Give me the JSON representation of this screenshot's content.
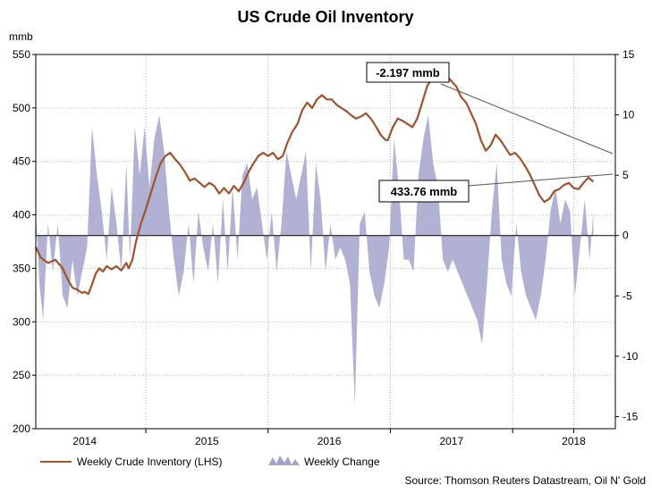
{
  "chart_data": {
    "type": "line",
    "title": "US Crude Oil Inventory",
    "left_axis": {
      "unit": "mmb",
      "ylim": [
        200,
        550
      ],
      "ticks": [
        "200",
        "250",
        "300",
        "350",
        "400",
        "450",
        "500",
        "550"
      ]
    },
    "right_axis": {
      "ylim": [
        -16,
        15
      ],
      "ticks": [
        "-15",
        "-10",
        "-5",
        "0",
        "5",
        "10",
        "15"
      ]
    },
    "x_axis": {
      "range": [
        2013.6,
        2018.34
      ],
      "tick_labels": [
        "2014",
        "2015",
        "2016",
        "2017",
        "2018"
      ],
      "tick_positions": [
        2014.0,
        2015.0,
        2016.0,
        2017.0,
        2018.0
      ],
      "year_boundaries": [
        2014.5,
        2015.5,
        2016.5,
        2017.5,
        2018.0
      ]
    },
    "grid": true,
    "legend_position": "bottom-left",
    "series": [
      {
        "name": "Weekly Crude Inventory (LHS)",
        "axis": "left",
        "color": "#a0522d",
        "points": [
          [
            2013.6,
            370
          ],
          [
            2013.64,
            360
          ],
          [
            2013.7,
            355
          ],
          [
            2013.76,
            358
          ],
          [
            2013.82,
            350
          ],
          [
            2013.86,
            340
          ],
          [
            2013.9,
            332
          ],
          [
            2013.94,
            330
          ],
          [
            2013.98,
            327
          ],
          [
            2014.0,
            328
          ],
          [
            2014.03,
            326
          ],
          [
            2014.06,
            335
          ],
          [
            2014.09,
            345
          ],
          [
            2014.12,
            350
          ],
          [
            2014.15,
            347
          ],
          [
            2014.18,
            352
          ],
          [
            2014.22,
            349
          ],
          [
            2014.26,
            352
          ],
          [
            2014.3,
            348
          ],
          [
            2014.34,
            355
          ],
          [
            2014.36,
            350
          ],
          [
            2014.39,
            358
          ],
          [
            2014.42,
            375
          ],
          [
            2014.46,
            392
          ],
          [
            2014.5,
            405
          ],
          [
            2014.54,
            420
          ],
          [
            2014.58,
            435
          ],
          [
            2014.62,
            448
          ],
          [
            2014.66,
            455
          ],
          [
            2014.7,
            458
          ],
          [
            2014.74,
            452
          ],
          [
            2014.78,
            447
          ],
          [
            2014.82,
            440
          ],
          [
            2014.86,
            432
          ],
          [
            2014.9,
            434
          ],
          [
            2014.94,
            430
          ],
          [
            2014.98,
            426
          ],
          [
            2015.02,
            430
          ],
          [
            2015.06,
            427
          ],
          [
            2015.1,
            420
          ],
          [
            2015.14,
            425
          ],
          [
            2015.18,
            420
          ],
          [
            2015.22,
            427
          ],
          [
            2015.26,
            422
          ],
          [
            2015.3,
            430
          ],
          [
            2015.34,
            440
          ],
          [
            2015.38,
            448
          ],
          [
            2015.42,
            455
          ],
          [
            2015.46,
            458
          ],
          [
            2015.5,
            455
          ],
          [
            2015.54,
            458
          ],
          [
            2015.58,
            452
          ],
          [
            2015.62,
            455
          ],
          [
            2015.66,
            468
          ],
          [
            2015.7,
            478
          ],
          [
            2015.74,
            485
          ],
          [
            2015.78,
            498
          ],
          [
            2015.82,
            505
          ],
          [
            2015.86,
            500
          ],
          [
            2015.9,
            508
          ],
          [
            2015.94,
            512
          ],
          [
            2015.98,
            508
          ],
          [
            2016.02,
            508
          ],
          [
            2016.06,
            503
          ],
          [
            2016.1,
            500
          ],
          [
            2016.14,
            497
          ],
          [
            2016.18,
            493
          ],
          [
            2016.22,
            490
          ],
          [
            2016.26,
            492
          ],
          [
            2016.3,
            495
          ],
          [
            2016.34,
            490
          ],
          [
            2016.38,
            483
          ],
          [
            2016.42,
            475
          ],
          [
            2016.46,
            470
          ],
          [
            2016.48,
            470
          ],
          [
            2016.52,
            482
          ],
          [
            2016.56,
            490
          ],
          [
            2016.6,
            488
          ],
          [
            2016.64,
            485
          ],
          [
            2016.68,
            482
          ],
          [
            2016.72,
            490
          ],
          [
            2016.76,
            505
          ],
          [
            2016.8,
            520
          ],
          [
            2016.84,
            528
          ],
          [
            2016.88,
            533
          ],
          [
            2016.92,
            535
          ],
          [
            2016.96,
            530
          ],
          [
            2017.0,
            525
          ],
          [
            2017.04,
            520
          ],
          [
            2017.08,
            510
          ],
          [
            2017.12,
            505
          ],
          [
            2017.16,
            495
          ],
          [
            2017.2,
            485
          ],
          [
            2017.24,
            470
          ],
          [
            2017.28,
            460
          ],
          [
            2017.32,
            465
          ],
          [
            2017.36,
            475
          ],
          [
            2017.4,
            470
          ],
          [
            2017.44,
            463
          ],
          [
            2017.48,
            456
          ],
          [
            2017.52,
            458
          ],
          [
            2017.56,
            453
          ],
          [
            2017.6,
            446
          ],
          [
            2017.64,
            438
          ],
          [
            2017.68,
            428
          ],
          [
            2017.72,
            418
          ],
          [
            2017.76,
            412
          ],
          [
            2017.8,
            415
          ],
          [
            2017.84,
            422
          ],
          [
            2017.88,
            424
          ],
          [
            2017.92,
            428
          ],
          [
            2017.96,
            430
          ],
          [
            2018.0,
            425
          ],
          [
            2018.04,
            424
          ],
          [
            2018.08,
            430
          ],
          [
            2018.12,
            435
          ],
          [
            2018.16,
            431
          ]
        ]
      },
      {
        "name": "Weekly Change",
        "axis": "right",
        "color": "#a3a3cc",
        "points": [
          [
            2013.6,
            2
          ],
          [
            2013.63,
            -4
          ],
          [
            2013.66,
            -7
          ],
          [
            2013.7,
            1
          ],
          [
            2013.74,
            -3
          ],
          [
            2013.78,
            1
          ],
          [
            2013.82,
            -5
          ],
          [
            2013.86,
            -6
          ],
          [
            2013.9,
            -2
          ],
          [
            2013.94,
            -5
          ],
          [
            2013.98,
            -3
          ],
          [
            2014.02,
            -1
          ],
          [
            2014.06,
            9
          ],
          [
            2014.1,
            5
          ],
          [
            2014.14,
            2
          ],
          [
            2014.18,
            -2
          ],
          [
            2014.22,
            4
          ],
          [
            2014.26,
            1
          ],
          [
            2014.3,
            -3
          ],
          [
            2014.34,
            6
          ],
          [
            2014.37,
            -2
          ],
          [
            2014.41,
            9
          ],
          [
            2014.45,
            5
          ],
          [
            2014.49,
            9
          ],
          [
            2014.53,
            4
          ],
          [
            2014.57,
            8
          ],
          [
            2014.61,
            10
          ],
          [
            2014.65,
            7
          ],
          [
            2014.69,
            2
          ],
          [
            2014.73,
            -2
          ],
          [
            2014.77,
            -5
          ],
          [
            2014.81,
            -3
          ],
          [
            2014.85,
            1
          ],
          [
            2014.89,
            -4
          ],
          [
            2014.93,
            2
          ],
          [
            2014.97,
            -1
          ],
          [
            2015.01,
            -3
          ],
          [
            2015.05,
            1
          ],
          [
            2015.09,
            -4
          ],
          [
            2015.13,
            3
          ],
          [
            2015.17,
            -3
          ],
          [
            2015.21,
            4
          ],
          [
            2015.25,
            -2
          ],
          [
            2015.29,
            5
          ],
          [
            2015.33,
            6
          ],
          [
            2015.37,
            3
          ],
          [
            2015.41,
            4
          ],
          [
            2015.45,
            1
          ],
          [
            2015.49,
            -2
          ],
          [
            2015.53,
            2
          ],
          [
            2015.57,
            -3
          ],
          [
            2015.61,
            1
          ],
          [
            2015.65,
            7
          ],
          [
            2015.69,
            5
          ],
          [
            2015.73,
            3
          ],
          [
            2015.77,
            5
          ],
          [
            2015.81,
            7
          ],
          [
            2015.85,
            -3
          ],
          [
            2015.89,
            6
          ],
          [
            2015.93,
            3
          ],
          [
            2015.97,
            -3
          ],
          [
            2016.01,
            1
          ],
          [
            2016.05,
            -2
          ],
          [
            2016.09,
            -1
          ],
          [
            2016.13,
            -2
          ],
          [
            2016.17,
            -4
          ],
          [
            2016.21,
            -14
          ],
          [
            2016.25,
            1
          ],
          [
            2016.29,
            2
          ],
          [
            2016.33,
            -3
          ],
          [
            2016.37,
            -5
          ],
          [
            2016.41,
            -6
          ],
          [
            2016.45,
            -4
          ],
          [
            2016.49,
            -1
          ],
          [
            2016.53,
            8
          ],
          [
            2016.57,
            4
          ],
          [
            2016.61,
            -2
          ],
          [
            2016.65,
            -2
          ],
          [
            2016.69,
            -3
          ],
          [
            2016.73,
            5
          ],
          [
            2016.77,
            8
          ],
          [
            2016.81,
            10
          ],
          [
            2016.85,
            6
          ],
          [
            2016.89,
            4
          ],
          [
            2016.93,
            -2
          ],
          [
            2016.97,
            -3
          ],
          [
            2017.01,
            -2
          ],
          [
            2017.05,
            -3
          ],
          [
            2017.09,
            -4
          ],
          [
            2017.13,
            -5
          ],
          [
            2017.17,
            -6
          ],
          [
            2017.21,
            -7
          ],
          [
            2017.25,
            -9
          ],
          [
            2017.29,
            -4
          ],
          [
            2017.33,
            2
          ],
          [
            2017.37,
            6
          ],
          [
            2017.41,
            -2
          ],
          [
            2017.45,
            -4
          ],
          [
            2017.49,
            -5
          ],
          [
            2017.53,
            1
          ],
          [
            2017.57,
            -3
          ],
          [
            2017.61,
            -5
          ],
          [
            2017.65,
            -6
          ],
          [
            2017.69,
            -7
          ],
          [
            2017.73,
            -5
          ],
          [
            2017.77,
            -2
          ],
          [
            2017.81,
            2
          ],
          [
            2017.85,
            4
          ],
          [
            2017.89,
            1
          ],
          [
            2017.93,
            3
          ],
          [
            2017.97,
            2
          ],
          [
            2018.01,
            -5
          ],
          [
            2018.05,
            -1
          ],
          [
            2018.09,
            3
          ],
          [
            2018.13,
            -2
          ],
          [
            2018.16,
            2
          ]
        ]
      }
    ],
    "annotations": [
      {
        "text": "-2.197 mmb"
      },
      {
        "text": "433.76 mmb"
      }
    ],
    "source": "Source: Thomson Reuters Datastream, Oil N' Gold"
  }
}
